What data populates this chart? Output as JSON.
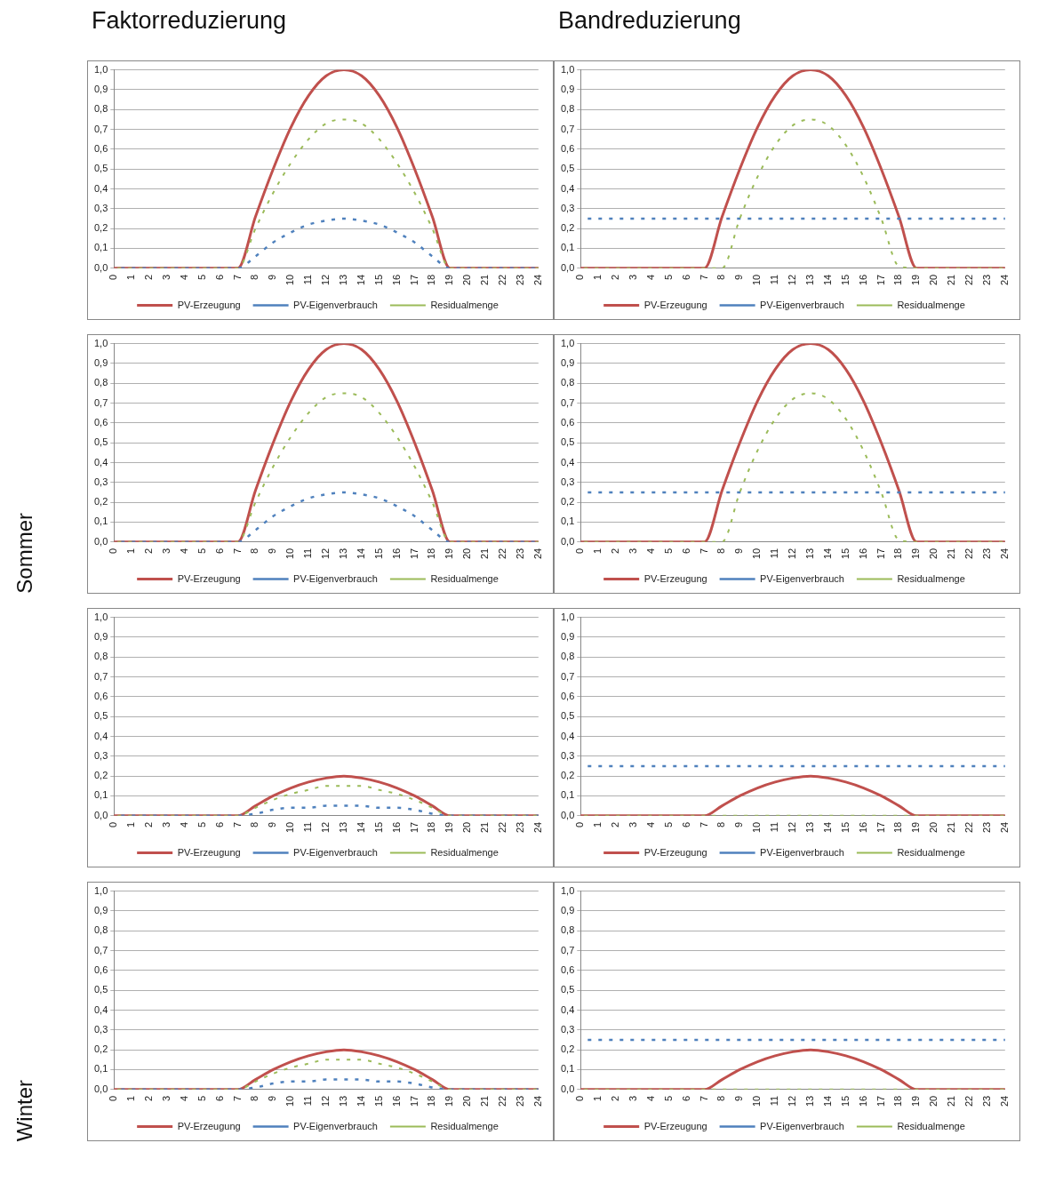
{
  "chart_data": [
    {
      "type": "line",
      "title": "Faktorreduzierung",
      "categories": [
        "0",
        "1",
        "2",
        "3",
        "4",
        "5",
        "6",
        "7",
        "8",
        "9",
        "10",
        "11",
        "12",
        "13",
        "14",
        "15",
        "16",
        "17",
        "18",
        "19",
        "20",
        "21",
        "22",
        "23",
        "24"
      ],
      "ylim": [
        0,
        1
      ],
      "yticks": [
        {
          "value": 0,
          "label": "0,0"
        },
        {
          "value": 0.1,
          "label": "0,1"
        },
        {
          "value": 0.2,
          "label": "0,2"
        },
        {
          "value": 0.3,
          "label": "0,3"
        },
        {
          "value": 0.4,
          "label": "0,4"
        },
        {
          "value": 0.5,
          "label": "0,5"
        },
        {
          "value": 0.6,
          "label": "0,6"
        },
        {
          "value": 0.7,
          "label": "0,7"
        },
        {
          "value": 0.8,
          "label": "0,8"
        },
        {
          "value": 0.9,
          "label": "0,9"
        },
        {
          "value": 1,
          "label": "1,0"
        }
      ],
      "grid": "y",
      "legend": "bottom",
      "marker": "none",
      "series": [
        {
          "name": "PV-Erzeugung",
          "color": "#c0504d",
          "line_style": "solid",
          "values": [
            0,
            0,
            0,
            0,
            0,
            0,
            0,
            0,
            0.26,
            0.5,
            0.71,
            0.87,
            0.97,
            1,
            0.97,
            0.87,
            0.71,
            0.5,
            0.26,
            0,
            0,
            0,
            0,
            0,
            0
          ]
        },
        {
          "name": "PV-Eigenverbrauch",
          "color": "#4f81bd",
          "line_style": "dashed",
          "values": [
            0,
            0,
            0,
            0,
            0,
            0,
            0,
            0,
            0.06,
            0.13,
            0.18,
            0.22,
            0.24,
            0.25,
            0.24,
            0.22,
            0.18,
            0.13,
            0.06,
            0,
            0,
            0,
            0,
            0,
            0
          ]
        },
        {
          "name": "Residualmenge",
          "color": "#9bbb59",
          "line_style": "dashed",
          "values": [
            0,
            0,
            0,
            0,
            0,
            0,
            0,
            0,
            0.2,
            0.38,
            0.53,
            0.65,
            0.73,
            0.75,
            0.73,
            0.65,
            0.53,
            0.38,
            0.2,
            0,
            0,
            0,
            0,
            0,
            0
          ]
        }
      ]
    },
    {
      "type": "line",
      "title": "Bandreduzierung",
      "categories": [
        "0",
        "1",
        "2",
        "3",
        "4",
        "5",
        "6",
        "7",
        "8",
        "9",
        "10",
        "11",
        "12",
        "13",
        "14",
        "15",
        "16",
        "17",
        "18",
        "19",
        "20",
        "21",
        "22",
        "23",
        "24"
      ],
      "ylim": [
        0,
        1
      ],
      "yticks": [
        {
          "value": 0,
          "label": "0,0"
        },
        {
          "value": 0.1,
          "label": "0,1"
        },
        {
          "value": 0.2,
          "label": "0,2"
        },
        {
          "value": 0.3,
          "label": "0,3"
        },
        {
          "value": 0.4,
          "label": "0,4"
        },
        {
          "value": 0.5,
          "label": "0,5"
        },
        {
          "value": 0.6,
          "label": "0,6"
        },
        {
          "value": 0.7,
          "label": "0,7"
        },
        {
          "value": 0.8,
          "label": "0,8"
        },
        {
          "value": 0.9,
          "label": "0,9"
        },
        {
          "value": 1,
          "label": "1,0"
        }
      ],
      "grid": "y",
      "legend": "bottom",
      "marker": "none",
      "series": [
        {
          "name": "PV-Erzeugung",
          "color": "#c0504d",
          "line_style": "solid",
          "values": [
            0,
            0,
            0,
            0,
            0,
            0,
            0,
            0,
            0.26,
            0.5,
            0.71,
            0.87,
            0.97,
            1,
            0.97,
            0.87,
            0.71,
            0.5,
            0.26,
            0,
            0,
            0,
            0,
            0,
            0
          ]
        },
        {
          "name": "PV-Eigenverbrauch",
          "color": "#4f81bd",
          "line_style": "dashed",
          "values": [
            0.25,
            0.25,
            0.25,
            0.25,
            0.25,
            0.25,
            0.25,
            0.25,
            0.25,
            0.25,
            0.25,
            0.25,
            0.25,
            0.25,
            0.25,
            0.25,
            0.25,
            0.25,
            0.25,
            0.25,
            0.25,
            0.25,
            0.25,
            0.25,
            0.25
          ]
        },
        {
          "name": "Residualmenge",
          "color": "#9bbb59",
          "line_style": "dashed",
          "values": [
            0,
            0,
            0,
            0,
            0,
            0,
            0,
            0,
            0,
            0.25,
            0.46,
            0.62,
            0.72,
            0.75,
            0.72,
            0.62,
            0.46,
            0.25,
            0.01,
            0,
            0,
            0,
            0,
            0,
            0
          ]
        }
      ]
    },
    {
      "type": "line",
      "annotations": [
        "Sommer"
      ],
      "categories": [
        "0",
        "1",
        "2",
        "3",
        "4",
        "5",
        "6",
        "7",
        "8",
        "9",
        "10",
        "11",
        "12",
        "13",
        "14",
        "15",
        "16",
        "17",
        "18",
        "19",
        "20",
        "21",
        "22",
        "23",
        "24"
      ],
      "ylim": [
        0,
        1
      ],
      "yticks": [
        {
          "value": 0,
          "label": "0,0"
        },
        {
          "value": 0.1,
          "label": "0,1"
        },
        {
          "value": 0.2,
          "label": "0,2"
        },
        {
          "value": 0.3,
          "label": "0,3"
        },
        {
          "value": 0.4,
          "label": "0,4"
        },
        {
          "value": 0.5,
          "label": "0,5"
        },
        {
          "value": 0.6,
          "label": "0,6"
        },
        {
          "value": 0.7,
          "label": "0,7"
        },
        {
          "value": 0.8,
          "label": "0,8"
        },
        {
          "value": 0.9,
          "label": "0,9"
        },
        {
          "value": 1,
          "label": "1,0"
        }
      ],
      "grid": "y",
      "legend": "bottom",
      "marker": "none",
      "series": [
        {
          "name": "PV-Erzeugung",
          "color": "#c0504d",
          "line_style": "solid",
          "values": [
            0,
            0,
            0,
            0,
            0,
            0,
            0,
            0,
            0.26,
            0.5,
            0.71,
            0.87,
            0.97,
            1,
            0.97,
            0.87,
            0.71,
            0.5,
            0.26,
            0,
            0,
            0,
            0,
            0,
            0
          ]
        },
        {
          "name": "PV-Eigenverbrauch",
          "color": "#4f81bd",
          "line_style": "dashed",
          "values": [
            0,
            0,
            0,
            0,
            0,
            0,
            0,
            0,
            0.06,
            0.13,
            0.18,
            0.22,
            0.24,
            0.25,
            0.24,
            0.22,
            0.18,
            0.13,
            0.06,
            0,
            0,
            0,
            0,
            0,
            0
          ]
        },
        {
          "name": "Residualmenge",
          "color": "#9bbb59",
          "line_style": "dashed",
          "values": [
            0,
            0,
            0,
            0,
            0,
            0,
            0,
            0,
            0.2,
            0.38,
            0.53,
            0.65,
            0.73,
            0.75,
            0.73,
            0.65,
            0.53,
            0.38,
            0.2,
            0,
            0,
            0,
            0,
            0,
            0
          ]
        }
      ]
    },
    {
      "type": "line",
      "categories": [
        "0",
        "1",
        "2",
        "3",
        "4",
        "5",
        "6",
        "7",
        "8",
        "9",
        "10",
        "11",
        "12",
        "13",
        "14",
        "15",
        "16",
        "17",
        "18",
        "19",
        "20",
        "21",
        "22",
        "23",
        "24"
      ],
      "ylim": [
        0,
        1
      ],
      "yticks": [
        {
          "value": 0,
          "label": "0,0"
        },
        {
          "value": 0.1,
          "label": "0,1"
        },
        {
          "value": 0.2,
          "label": "0,2"
        },
        {
          "value": 0.3,
          "label": "0,3"
        },
        {
          "value": 0.4,
          "label": "0,4"
        },
        {
          "value": 0.5,
          "label": "0,5"
        },
        {
          "value": 0.6,
          "label": "0,6"
        },
        {
          "value": 0.7,
          "label": "0,7"
        },
        {
          "value": 0.8,
          "label": "0,8"
        },
        {
          "value": 0.9,
          "label": "0,9"
        },
        {
          "value": 1,
          "label": "1,0"
        }
      ],
      "grid": "y",
      "legend": "bottom",
      "marker": "none",
      "series": [
        {
          "name": "PV-Erzeugung",
          "color": "#c0504d",
          "line_style": "solid",
          "values": [
            0,
            0,
            0,
            0,
            0,
            0,
            0,
            0,
            0.26,
            0.5,
            0.71,
            0.87,
            0.97,
            1,
            0.97,
            0.87,
            0.71,
            0.5,
            0.26,
            0,
            0,
            0,
            0,
            0,
            0
          ]
        },
        {
          "name": "PV-Eigenverbrauch",
          "color": "#4f81bd",
          "line_style": "dashed",
          "values": [
            0.25,
            0.25,
            0.25,
            0.25,
            0.25,
            0.25,
            0.25,
            0.25,
            0.25,
            0.25,
            0.25,
            0.25,
            0.25,
            0.25,
            0.25,
            0.25,
            0.25,
            0.25,
            0.25,
            0.25,
            0.25,
            0.25,
            0.25,
            0.25,
            0.25
          ]
        },
        {
          "name": "Residualmenge",
          "color": "#9bbb59",
          "line_style": "dashed",
          "values": [
            0,
            0,
            0,
            0,
            0,
            0,
            0,
            0,
            0,
            0.25,
            0.46,
            0.62,
            0.72,
            0.75,
            0.72,
            0.62,
            0.46,
            0.25,
            0.01,
            0,
            0,
            0,
            0,
            0,
            0
          ]
        }
      ]
    },
    {
      "type": "line",
      "categories": [
        "0",
        "1",
        "2",
        "3",
        "4",
        "5",
        "6",
        "7",
        "8",
        "9",
        "10",
        "11",
        "12",
        "13",
        "14",
        "15",
        "16",
        "17",
        "18",
        "19",
        "20",
        "21",
        "22",
        "23",
        "24"
      ],
      "ylim": [
        0,
        1
      ],
      "yticks": [
        {
          "value": 0,
          "label": "0,0"
        },
        {
          "value": 0.1,
          "label": "0,1"
        },
        {
          "value": 0.2,
          "label": "0,2"
        },
        {
          "value": 0.3,
          "label": "0,3"
        },
        {
          "value": 0.4,
          "label": "0,4"
        },
        {
          "value": 0.5,
          "label": "0,5"
        },
        {
          "value": 0.6,
          "label": "0,6"
        },
        {
          "value": 0.7,
          "label": "0,7"
        },
        {
          "value": 0.8,
          "label": "0,8"
        },
        {
          "value": 0.9,
          "label": "0,9"
        },
        {
          "value": 1,
          "label": "1,0"
        }
      ],
      "grid": "y",
      "legend": "bottom",
      "marker": "none",
      "series": [
        {
          "name": "PV-Erzeugung",
          "color": "#c0504d",
          "line_style": "solid",
          "values": [
            0,
            0,
            0,
            0,
            0,
            0,
            0,
            0,
            0.05,
            0.1,
            0.14,
            0.17,
            0.19,
            0.2,
            0.19,
            0.17,
            0.14,
            0.1,
            0.05,
            0,
            0,
            0,
            0,
            0,
            0
          ]
        },
        {
          "name": "PV-Eigenverbrauch",
          "color": "#4f81bd",
          "line_style": "dashed",
          "values": [
            0,
            0,
            0,
            0,
            0,
            0,
            0,
            0,
            0.01,
            0.03,
            0.04,
            0.04,
            0.05,
            0.05,
            0.05,
            0.04,
            0.04,
            0.03,
            0.01,
            0,
            0,
            0,
            0,
            0,
            0
          ]
        },
        {
          "name": "Residualmenge",
          "color": "#9bbb59",
          "line_style": "dashed",
          "values": [
            0,
            0,
            0,
            0,
            0,
            0,
            0,
            0,
            0.04,
            0.08,
            0.11,
            0.13,
            0.15,
            0.15,
            0.15,
            0.13,
            0.11,
            0.08,
            0.04,
            0,
            0,
            0,
            0,
            0,
            0
          ]
        }
      ]
    },
    {
      "type": "line",
      "categories": [
        "0",
        "1",
        "2",
        "3",
        "4",
        "5",
        "6",
        "7",
        "8",
        "9",
        "10",
        "11",
        "12",
        "13",
        "14",
        "15",
        "16",
        "17",
        "18",
        "19",
        "20",
        "21",
        "22",
        "23",
        "24"
      ],
      "ylim": [
        0,
        1
      ],
      "yticks": [
        {
          "value": 0,
          "label": "0,0"
        },
        {
          "value": 0.1,
          "label": "0,1"
        },
        {
          "value": 0.2,
          "label": "0,2"
        },
        {
          "value": 0.3,
          "label": "0,3"
        },
        {
          "value": 0.4,
          "label": "0,4"
        },
        {
          "value": 0.5,
          "label": "0,5"
        },
        {
          "value": 0.6,
          "label": "0,6"
        },
        {
          "value": 0.7,
          "label": "0,7"
        },
        {
          "value": 0.8,
          "label": "0,8"
        },
        {
          "value": 0.9,
          "label": "0,9"
        },
        {
          "value": 1,
          "label": "1,0"
        }
      ],
      "grid": "y",
      "legend": "bottom",
      "marker": "none",
      "series": [
        {
          "name": "PV-Erzeugung",
          "color": "#c0504d",
          "line_style": "solid",
          "values": [
            0,
            0,
            0,
            0,
            0,
            0,
            0,
            0,
            0.05,
            0.1,
            0.14,
            0.17,
            0.19,
            0.2,
            0.19,
            0.17,
            0.14,
            0.1,
            0.05,
            0,
            0,
            0,
            0,
            0,
            0
          ]
        },
        {
          "name": "PV-Eigenverbrauch",
          "color": "#4f81bd",
          "line_style": "dashed",
          "values": [
            0.25,
            0.25,
            0.25,
            0.25,
            0.25,
            0.25,
            0.25,
            0.25,
            0.25,
            0.25,
            0.25,
            0.25,
            0.25,
            0.25,
            0.25,
            0.25,
            0.25,
            0.25,
            0.25,
            0.25,
            0.25,
            0.25,
            0.25,
            0.25,
            0.25
          ]
        },
        {
          "name": "Residualmenge",
          "color": "#9bbb59",
          "line_style": "dashed",
          "values": [
            0,
            0,
            0,
            0,
            0,
            0,
            0,
            0,
            0,
            0,
            0,
            0,
            0,
            0,
            0,
            0,
            0,
            0,
            0,
            0,
            0,
            0,
            0,
            0,
            0
          ]
        }
      ]
    },
    {
      "type": "line",
      "annotations": [
        "Winter"
      ],
      "categories": [
        "0",
        "1",
        "2",
        "3",
        "4",
        "5",
        "6",
        "7",
        "8",
        "9",
        "10",
        "11",
        "12",
        "13",
        "14",
        "15",
        "16",
        "17",
        "18",
        "19",
        "20",
        "21",
        "22",
        "23",
        "24"
      ],
      "ylim": [
        0,
        1
      ],
      "yticks": [
        {
          "value": 0,
          "label": "0,0"
        },
        {
          "value": 0.1,
          "label": "0,1"
        },
        {
          "value": 0.2,
          "label": "0,2"
        },
        {
          "value": 0.3,
          "label": "0,3"
        },
        {
          "value": 0.4,
          "label": "0,4"
        },
        {
          "value": 0.5,
          "label": "0,5"
        },
        {
          "value": 0.6,
          "label": "0,6"
        },
        {
          "value": 0.7,
          "label": "0,7"
        },
        {
          "value": 0.8,
          "label": "0,8"
        },
        {
          "value": 0.9,
          "label": "0,9"
        },
        {
          "value": 1,
          "label": "1,0"
        }
      ],
      "grid": "y",
      "legend": "bottom",
      "marker": "none",
      "series": [
        {
          "name": "PV-Erzeugung",
          "color": "#c0504d",
          "line_style": "solid",
          "values": [
            0,
            0,
            0,
            0,
            0,
            0,
            0,
            0,
            0.05,
            0.1,
            0.14,
            0.17,
            0.19,
            0.2,
            0.19,
            0.17,
            0.14,
            0.1,
            0.05,
            0,
            0,
            0,
            0,
            0,
            0
          ]
        },
        {
          "name": "PV-Eigenverbrauch",
          "color": "#4f81bd",
          "line_style": "dashed",
          "values": [
            0,
            0,
            0,
            0,
            0,
            0,
            0,
            0,
            0.01,
            0.03,
            0.04,
            0.04,
            0.05,
            0.05,
            0.05,
            0.04,
            0.04,
            0.03,
            0.01,
            0,
            0,
            0,
            0,
            0,
            0
          ]
        },
        {
          "name": "Residualmenge",
          "color": "#9bbb59",
          "line_style": "dashed",
          "values": [
            0,
            0,
            0,
            0,
            0,
            0,
            0,
            0,
            0.04,
            0.08,
            0.11,
            0.13,
            0.15,
            0.15,
            0.15,
            0.13,
            0.11,
            0.08,
            0.04,
            0,
            0,
            0,
            0,
            0,
            0
          ]
        }
      ]
    },
    {
      "type": "line",
      "categories": [
        "0",
        "1",
        "2",
        "3",
        "4",
        "5",
        "6",
        "7",
        "8",
        "9",
        "10",
        "11",
        "12",
        "13",
        "14",
        "15",
        "16",
        "17",
        "18",
        "19",
        "20",
        "21",
        "22",
        "23",
        "24"
      ],
      "ylim": [
        0,
        1
      ],
      "yticks": [
        {
          "value": 0,
          "label": "0,0"
        },
        {
          "value": 0.1,
          "label": "0,1"
        },
        {
          "value": 0.2,
          "label": "0,2"
        },
        {
          "value": 0.3,
          "label": "0,3"
        },
        {
          "value": 0.4,
          "label": "0,4"
        },
        {
          "value": 0.5,
          "label": "0,5"
        },
        {
          "value": 0.6,
          "label": "0,6"
        },
        {
          "value": 0.7,
          "label": "0,7"
        },
        {
          "value": 0.8,
          "label": "0,8"
        },
        {
          "value": 0.9,
          "label": "0,9"
        },
        {
          "value": 1,
          "label": "1,0"
        }
      ],
      "grid": "y",
      "legend": "bottom",
      "marker": "none",
      "series": [
        {
          "name": "PV-Erzeugung",
          "color": "#c0504d",
          "line_style": "solid",
          "values": [
            0,
            0,
            0,
            0,
            0,
            0,
            0,
            0,
            0.05,
            0.1,
            0.14,
            0.17,
            0.19,
            0.2,
            0.19,
            0.17,
            0.14,
            0.1,
            0.05,
            0,
            0,
            0,
            0,
            0,
            0
          ]
        },
        {
          "name": "PV-Eigenverbrauch",
          "color": "#4f81bd",
          "line_style": "dashed",
          "values": [
            0.25,
            0.25,
            0.25,
            0.25,
            0.25,
            0.25,
            0.25,
            0.25,
            0.25,
            0.25,
            0.25,
            0.25,
            0.25,
            0.25,
            0.25,
            0.25,
            0.25,
            0.25,
            0.25,
            0.25,
            0.25,
            0.25,
            0.25,
            0.25,
            0.25
          ]
        },
        {
          "name": "Residualmenge",
          "color": "#9bbb59",
          "line_style": "dashed",
          "values": [
            0,
            0,
            0,
            0,
            0,
            0,
            0,
            0,
            0,
            0,
            0,
            0,
            0,
            0,
            0,
            0,
            0,
            0,
            0,
            0,
            0,
            0,
            0,
            0,
            0
          ]
        }
      ]
    }
  ]
}
